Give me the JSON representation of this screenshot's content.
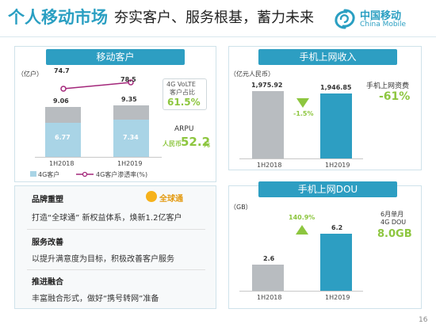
{
  "header": {
    "title": "个人移动市场",
    "subtitle": "夯实客户、服务根基，蓄力未来",
    "logo_cn": "中国移动",
    "logo_en": "China Mobile",
    "page_number": "16"
  },
  "panel_customers": {
    "title": "移动客户",
    "unit": "（亿户）",
    "categories": [
      "1H2018",
      "1H2019"
    ],
    "totals": [
      "74.7",
      "78.5"
    ],
    "top_segment": [
      "9.06",
      "9.35"
    ],
    "base_segment": [
      "6.77",
      "7.34"
    ],
    "volte_label_1": "4G VoLTE",
    "volte_label_2": "客户占比",
    "volte_pct": "61.5%",
    "arpu_label": "ARPU",
    "arpu_prefix": "人民币",
    "arpu_value": "52.2",
    "arpu_unit": "元",
    "legend_bar": "4G客户",
    "legend_line": "4G客户渗透率(%)"
  },
  "panel_revenue": {
    "title": "手机上网收入",
    "unit": "（亿元人民币）",
    "categories": [
      "1H2018",
      "1H2019"
    ],
    "values_text": [
      "1,975.92",
      "1,946.85"
    ],
    "change": "-1.5%",
    "tariff_label": "手机上网资费",
    "tariff_change": "-61%"
  },
  "panel_dou": {
    "title": "手机上网DOU",
    "unit": "（GB）",
    "categories": [
      "1H2018",
      "1H2019"
    ],
    "values_text": [
      "2.6",
      "6.2"
    ],
    "change": "140.9%",
    "month_label_1": "6月单月",
    "month_label_2": "4G DOU",
    "month_value": "8.0GB"
  },
  "panel_brand": {
    "heading1": "品牌重塑",
    "logo_text": "全球通",
    "line1": "打造“全球通” 新权益体系，焕新1.2亿客户",
    "heading2": "服务改善",
    "line2": "以提升满意度为目标，积极改善客户服务",
    "heading3": "推进融合",
    "line3": "丰富融合形式，做好“携号转网”准备"
  },
  "chart_data": [
    {
      "type": "bar",
      "title": "移动客户",
      "ylabel": "亿户",
      "categories": [
        "1H2018",
        "1H2019"
      ],
      "series": [
        {
          "name": "4G客户",
          "values": [
            6.77,
            7.34
          ]
        },
        {
          "name": "",
          "values": [
            9.06,
            9.35
          ]
        },
        {
          "name": "4G客户渗透率(%)",
          "values": [
            74.7,
            78.5
          ]
        }
      ]
    },
    {
      "type": "bar",
      "title": "手机上网收入",
      "ylabel": "亿元人民币",
      "categories": [
        "1H2018",
        "1H2019"
      ],
      "values": [
        1975.92,
        1946.85
      ]
    },
    {
      "type": "bar",
      "title": "手机上网DOU",
      "ylabel": "GB",
      "categories": [
        "1H2018",
        "1H2019"
      ],
      "values": [
        2.6,
        6.2
      ]
    }
  ],
  "colors": {
    "brand": "#2a9fc2",
    "bar_grey": "#b8bcc0",
    "bar_blue": "#2d9ec2",
    "bar_light": "#a9d4e6",
    "line_magenta": "#a3267a",
    "green": "#8dc63f"
  }
}
